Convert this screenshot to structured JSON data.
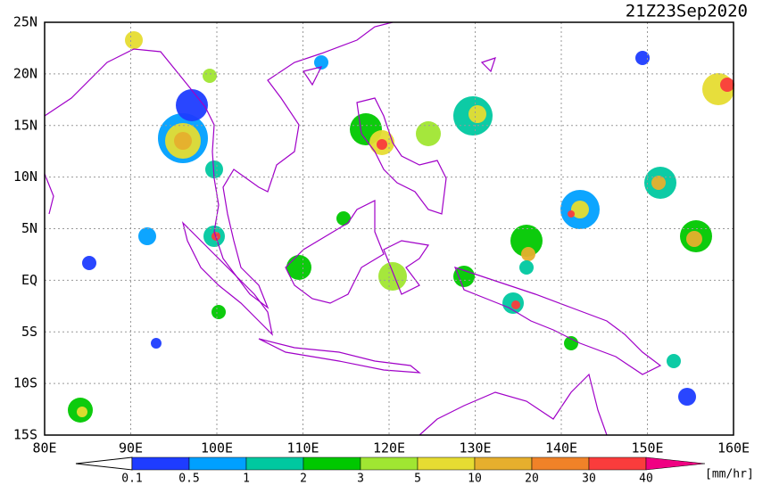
{
  "timestamp": "21Z23Sep2020",
  "lat_labels": [
    "25N",
    "20N",
    "15N",
    "10N",
    "5N",
    "EQ",
    "5S",
    "10S",
    "15S"
  ],
  "lon_labels": [
    "80E",
    "90E",
    "100E",
    "110E",
    "120E",
    "130E",
    "140E",
    "150E",
    "160E"
  ],
  "colorbar": {
    "labels": [
      "0.1",
      "0.5",
      "1",
      "2",
      "3",
      "5",
      "10",
      "20",
      "30",
      "40"
    ],
    "colors": [
      "#1e3cff",
      "#00a0ff",
      "#00c8a0",
      "#00c800",
      "#a0e632",
      "#e6dc32",
      "#e6af2d",
      "#f08228",
      "#fa3c3c",
      "#f00082"
    ],
    "unit": "[mm/hr]"
  }
}
